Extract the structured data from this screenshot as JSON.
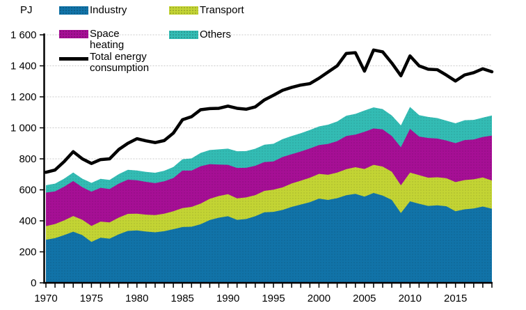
{
  "page": {
    "unit_label": "PJ"
  },
  "legend": {
    "items": [
      {
        "label": "Industry",
        "color": "#1173a8",
        "swatch": "area"
      },
      {
        "label": "Transport",
        "color": "#c3d434",
        "swatch": "area"
      },
      {
        "label": "Space heating",
        "color": "#a60f95",
        "swatch": "area"
      },
      {
        "label": "Others",
        "color": "#33bcb4",
        "swatch": "area"
      },
      {
        "label": "Total energy consumption",
        "color": "#000000",
        "swatch": "line"
      }
    ]
  },
  "axes": {
    "y_tick_values": [
      0,
      200,
      400,
      600,
      800,
      1000,
      1200,
      1400,
      1600
    ],
    "y_tick_labels": [
      "0",
      "200",
      "400",
      "600",
      "800",
      "1 000",
      "1 200",
      "1 400",
      "1 600"
    ],
    "x_tick_labels": [
      "1970",
      "1975",
      "1980",
      "1985",
      "1990",
      "1995",
      "2000",
      "2005",
      "2010",
      "2015"
    ]
  },
  "chart_data": {
    "type": "area",
    "stacked": true,
    "title": "",
    "ylabel": "PJ",
    "xlabel": "",
    "ylim": [
      0,
      1600
    ],
    "ytick_step": 200,
    "grid": true,
    "legend_position": "top-left-inside",
    "colors": {
      "grid": "#c9c9c9",
      "axis": "#000000",
      "background": "#ffffff"
    },
    "x": [
      1970,
      1971,
      1972,
      1973,
      1974,
      1975,
      1976,
      1977,
      1978,
      1979,
      1980,
      1981,
      1982,
      1983,
      1984,
      1985,
      1986,
      1987,
      1988,
      1989,
      1990,
      1991,
      1992,
      1993,
      1994,
      1995,
      1996,
      1997,
      1998,
      1999,
      2000,
      2001,
      2002,
      2003,
      2004,
      2005,
      2006,
      2007,
      2008,
      2009,
      2010,
      2011,
      2012,
      2013,
      2014,
      2015,
      2016,
      2017,
      2018,
      2019
    ],
    "series": [
      {
        "name": "Industry",
        "type": "area",
        "color": "#1173a8",
        "values": [
          278,
          288,
          308,
          330,
          308,
          264,
          291,
          285,
          313,
          335,
          338,
          331,
          326,
          333,
          346,
          360,
          362,
          378,
          405,
          420,
          430,
          406,
          412,
          430,
          455,
          458,
          470,
          490,
          505,
          520,
          543,
          535,
          546,
          565,
          574,
          556,
          580,
          563,
          535,
          450,
          526,
          510,
          496,
          500,
          494,
          462,
          474,
          480,
          492,
          478
        ]
      },
      {
        "name": "Transport",
        "type": "area",
        "color": "#c3d434",
        "values": [
          88,
          91,
          95,
          101,
          99,
          103,
          104,
          105,
          108,
          110,
          108,
          109,
          111,
          113,
          116,
          122,
          128,
          133,
          137,
          140,
          142,
          139,
          139,
          136,
          138,
          143,
          146,
          151,
          154,
          158,
          160,
          162,
          165,
          168,
          172,
          178,
          181,
          187,
          182,
          179,
          185,
          185,
          182,
          181,
          181,
          188,
          189,
          188,
          188,
          182
        ]
      },
      {
        "name": "Space heating",
        "type": "area",
        "color": "#a60f95",
        "values": [
          216,
          211,
          217,
          226,
          210,
          221,
          218,
          215,
          219,
          221,
          216,
          211,
          206,
          209,
          214,
          242,
          234,
          241,
          224,
          203,
          189,
          196,
          191,
          189,
          186,
          182,
          196,
          189,
          188,
          189,
          186,
          199,
          203,
          214,
          210,
          240,
          235,
          240,
          230,
          246,
          282,
          249,
          256,
          250,
          243,
          251,
          258,
          257,
          261,
          290
        ]
      },
      {
        "name": "Others",
        "type": "area",
        "color": "#33bcb4",
        "values": [
          48,
          50,
          52,
          55,
          55,
          57,
          58,
          59,
          61,
          63,
          63,
          65,
          67,
          68,
          71,
          73,
          79,
          86,
          91,
          98,
          105,
          108,
          108,
          110,
          112,
          114,
          115,
          117,
          118,
          119,
          120,
          124,
          127,
          131,
          134,
          138,
          136,
          131,
          133,
          141,
          142,
          138,
          136,
          132,
          128,
          128,
          128,
          126,
          125,
          130
        ]
      },
      {
        "name": "Total energy consumption",
        "type": "line",
        "color": "#000000",
        "values": [
          713,
          728,
          782,
          846,
          800,
          770,
          795,
          800,
          860,
          900,
          930,
          916,
          905,
          918,
          966,
          1052,
          1072,
          1117,
          1124,
          1126,
          1140,
          1126,
          1120,
          1135,
          1180,
          1210,
          1242,
          1261,
          1276,
          1285,
          1320,
          1360,
          1400,
          1480,
          1485,
          1366,
          1502,
          1490,
          1418,
          1336,
          1464,
          1400,
          1378,
          1375,
          1340,
          1302,
          1341,
          1356,
          1381,
          1362
        ]
      }
    ]
  }
}
